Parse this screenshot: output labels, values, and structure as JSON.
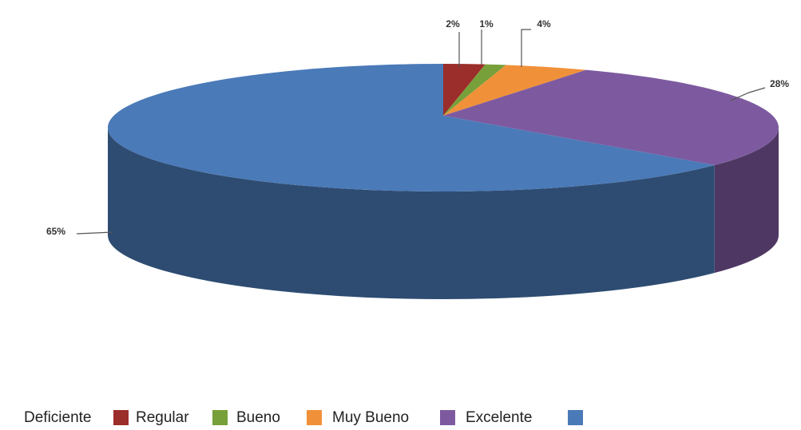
{
  "chart_data": {
    "type": "pie3d",
    "categories": [
      "Deficiente",
      "Regular",
      "Bueno",
      "Muy Bueno",
      "Excelente"
    ],
    "values": [
      2,
      1,
      4,
      28,
      65
    ],
    "value_labels": [
      "2%",
      "1%",
      "4%",
      "28%",
      "65%"
    ],
    "colors": [
      "#9b2d2a",
      "#77a03a",
      "#f0913a",
      "#7d5aa0",
      "#4a7ab8"
    ],
    "legend": "bottom-left"
  }
}
